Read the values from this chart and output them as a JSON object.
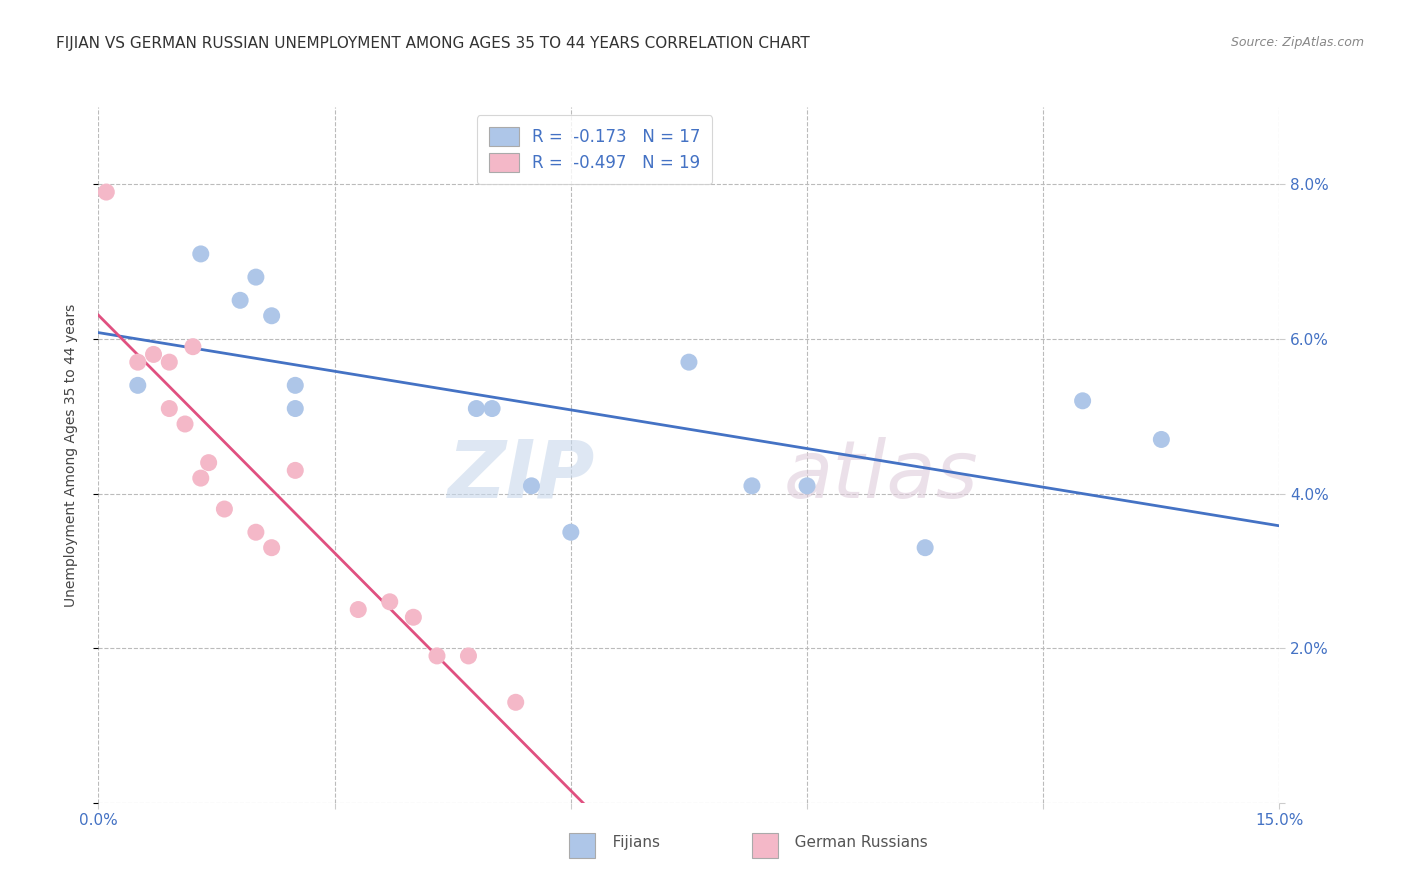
{
  "title": "FIJIAN VS GERMAN RUSSIAN UNEMPLOYMENT AMONG AGES 35 TO 44 YEARS CORRELATION CHART",
  "source": "Source: ZipAtlas.com",
  "ylabel": "Unemployment Among Ages 35 to 44 years",
  "xlim": [
    0.0,
    0.15
  ],
  "ylim": [
    0.0,
    0.09
  ],
  "xticks": [
    0.0,
    0.03,
    0.06,
    0.09,
    0.12,
    0.15
  ],
  "yticks": [
    0.0,
    0.02,
    0.04,
    0.06,
    0.08
  ],
  "legend_r1": "R =  -0.173   N = 17",
  "legend_r2": "R =  -0.497   N = 19",
  "fijian_color": "#aec6e8",
  "german_russian_color": "#f4b8c8",
  "trendline_fijian_color": "#4472c4",
  "trendline_gr_color": "#e05080",
  "trendline_ext_color": "#c8c8c8",
  "fijian_x": [
    0.005,
    0.013,
    0.018,
    0.02,
    0.022,
    0.025,
    0.025,
    0.048,
    0.05,
    0.055,
    0.06,
    0.075,
    0.083,
    0.09,
    0.105,
    0.125,
    0.135
  ],
  "fijian_y": [
    0.054,
    0.071,
    0.065,
    0.068,
    0.063,
    0.054,
    0.051,
    0.051,
    0.051,
    0.041,
    0.035,
    0.057,
    0.041,
    0.041,
    0.033,
    0.052,
    0.047
  ],
  "german_russian_x": [
    0.001,
    0.005,
    0.007,
    0.009,
    0.009,
    0.011,
    0.012,
    0.013,
    0.014,
    0.016,
    0.02,
    0.022,
    0.025,
    0.033,
    0.037,
    0.04,
    0.043,
    0.047,
    0.053
  ],
  "german_russian_y": [
    0.079,
    0.057,
    0.058,
    0.057,
    0.051,
    0.049,
    0.059,
    0.042,
    0.044,
    0.038,
    0.035,
    0.033,
    0.043,
    0.025,
    0.026,
    0.024,
    0.019,
    0.019,
    0.013
  ]
}
